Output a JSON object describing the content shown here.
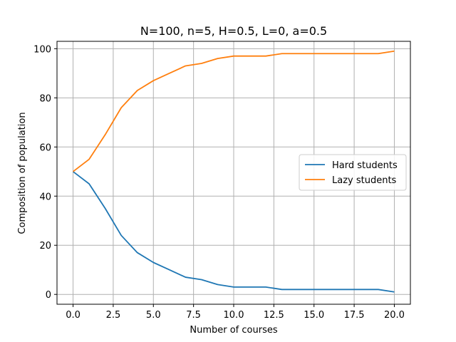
{
  "chart_data": {
    "type": "line",
    "title": "N=100, n=5, H=0.5, L=0, a=0.5",
    "xlabel": "Number of courses",
    "ylabel": "Composition of population",
    "xlim": [
      -1,
      21
    ],
    "ylim": [
      -4,
      103
    ],
    "xticks": [
      0,
      2.5,
      5,
      7.5,
      10,
      12.5,
      15,
      17.5,
      20
    ],
    "xtick_labels": [
      "0.0",
      "2.5",
      "5.0",
      "7.5",
      "10.0",
      "12.5",
      "15.0",
      "17.5",
      "20.0"
    ],
    "yticks": [
      0,
      20,
      40,
      60,
      80,
      100
    ],
    "ytick_labels": [
      "0",
      "20",
      "40",
      "60",
      "80",
      "100"
    ],
    "grid": true,
    "legend_position": "center-right",
    "x": [
      0,
      1,
      2,
      3,
      4,
      5,
      6,
      7,
      8,
      9,
      10,
      11,
      12,
      13,
      14,
      15,
      16,
      17,
      18,
      19,
      20
    ],
    "series": [
      {
        "name": "Hard students",
        "color": "#1f77b4",
        "values": [
          50,
          45,
          35,
          24,
          17,
          13,
          10,
          7,
          6,
          4,
          3,
          3,
          3,
          2,
          2,
          2,
          2,
          2,
          2,
          2,
          1
        ]
      },
      {
        "name": "Lazy students",
        "color": "#ff7f0e",
        "values": [
          50,
          55,
          65,
          76,
          83,
          87,
          90,
          93,
          94,
          96,
          97,
          97,
          97,
          98,
          98,
          98,
          98,
          98,
          98,
          98,
          99
        ]
      }
    ]
  }
}
